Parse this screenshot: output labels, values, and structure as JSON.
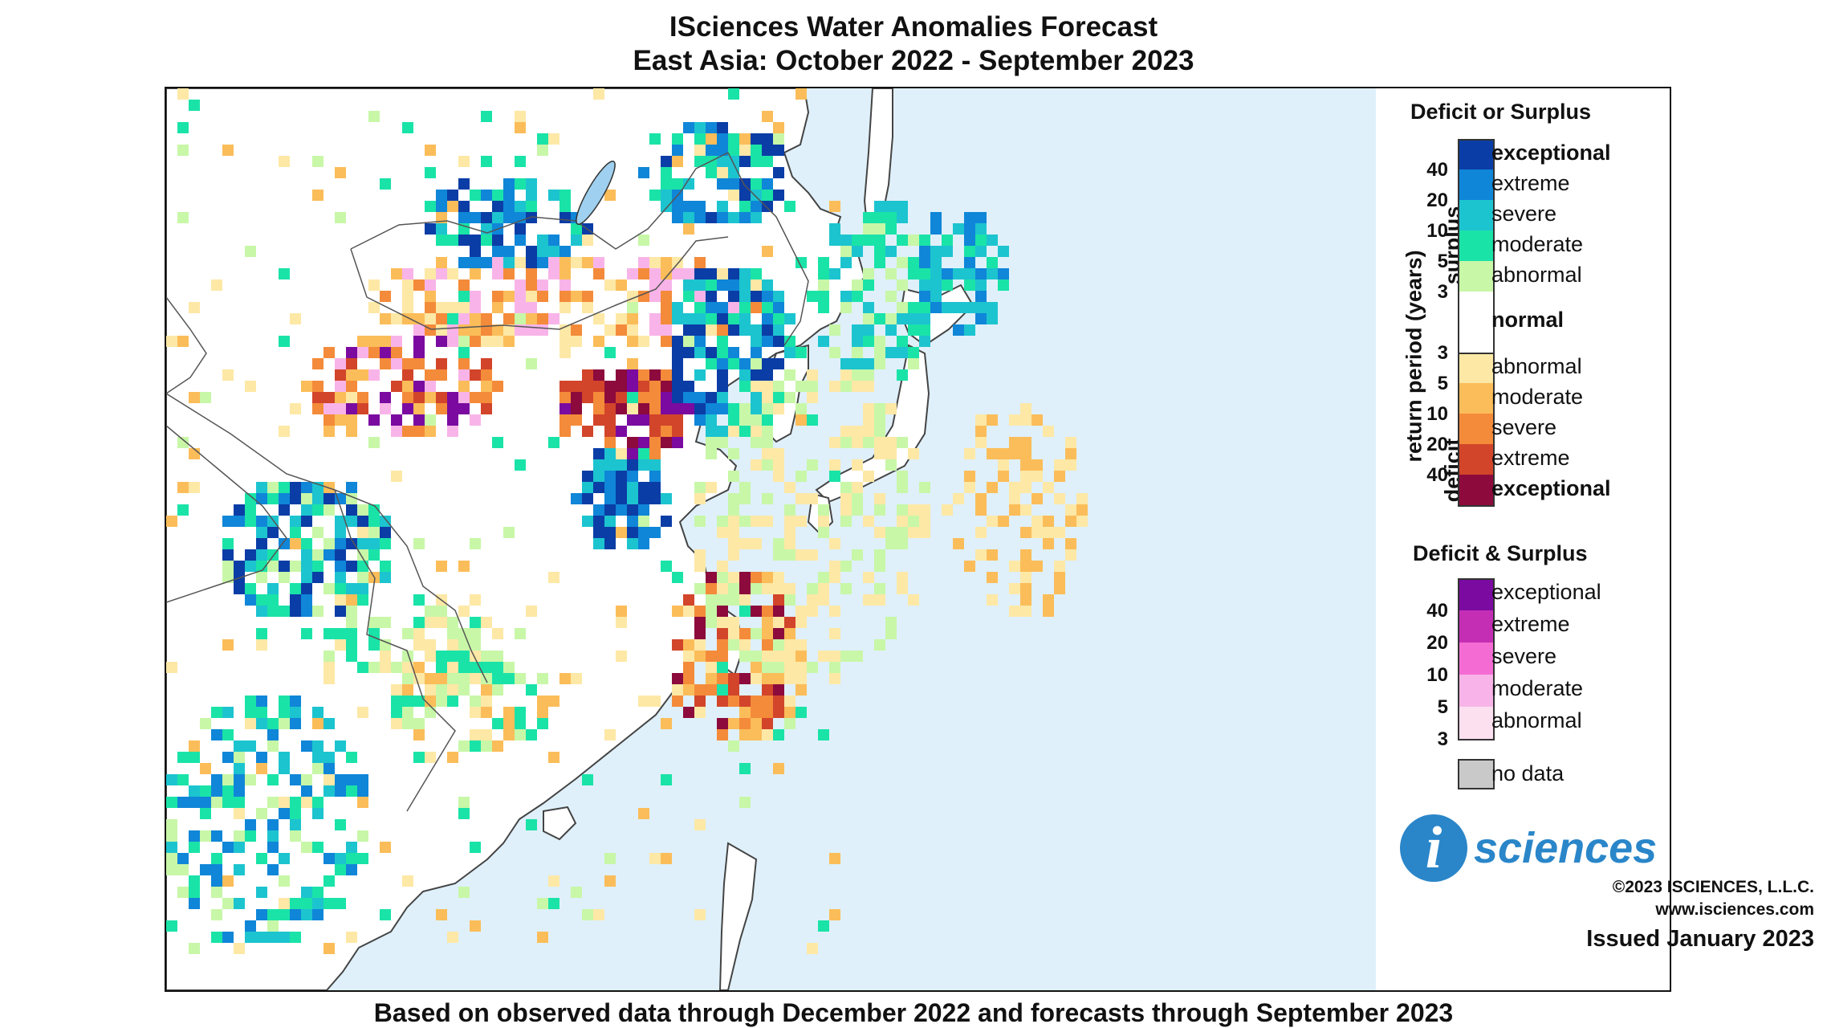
{
  "title_line1": "ISciences Water Anomalies Forecast",
  "title_line2": "East Asia: October 2022 - September 2023",
  "footer": "Based on observed data through December 2022 and forecasts through September 2023",
  "legend": {
    "heading1": "Deficit or Surplus",
    "axis_label": "return period (years)",
    "surplus_label": "surplus",
    "deficit_label": "deficit",
    "surplus_classes": [
      {
        "label": "exceptional",
        "color": "#0b3da6",
        "bold": true
      },
      {
        "label": "extreme",
        "color": "#0f86d8",
        "bold": false
      },
      {
        "label": "severe",
        "color": "#1cc4cf",
        "bold": false
      },
      {
        "label": "moderate",
        "color": "#1ae3a8",
        "bold": false
      },
      {
        "label": "abnormal",
        "color": "#c8f7a8",
        "bold": false
      }
    ],
    "normal_label": "normal",
    "deficit_classes": [
      {
        "label": "abnormal",
        "color": "#fde8a6",
        "bold": false
      },
      {
        "label": "moderate",
        "color": "#fbbd59",
        "bold": false
      },
      {
        "label": "severe",
        "color": "#f48b3a",
        "bold": false
      },
      {
        "label": "extreme",
        "color": "#d2452a",
        "bold": false
      },
      {
        "label": "exceptional",
        "color": "#8c0a3c",
        "bold": true
      }
    ],
    "surplus_ticks": [
      "40",
      "20",
      "10",
      "5",
      "3"
    ],
    "deficit_ticks": [
      "3",
      "5",
      "10",
      "20",
      "40"
    ],
    "heading2": "Deficit & Surplus",
    "both_classes": [
      {
        "label": "exceptional",
        "color": "#7a0aa0"
      },
      {
        "label": "extreme",
        "color": "#c42eb4"
      },
      {
        "label": "severe",
        "color": "#f46cd3"
      },
      {
        "label": "moderate",
        "color": "#f8b4e8"
      },
      {
        "label": "abnormal",
        "color": "#fde0f0"
      }
    ],
    "both_ticks": [
      "40",
      "20",
      "10",
      "5",
      "3"
    ],
    "nodata_label": "no data",
    "nodata_color": "#c9c9c9"
  },
  "logo_text": "sciences",
  "logo_letter": "i",
  "copyright": "©2023 ISCIENCES, L.L.C.",
  "website": "www.isciences.com",
  "issued": "Issued January 2023",
  "map_colors": {
    "sea": "#dff0fa",
    "land": "#ffffff",
    "border": "#555555"
  }
}
